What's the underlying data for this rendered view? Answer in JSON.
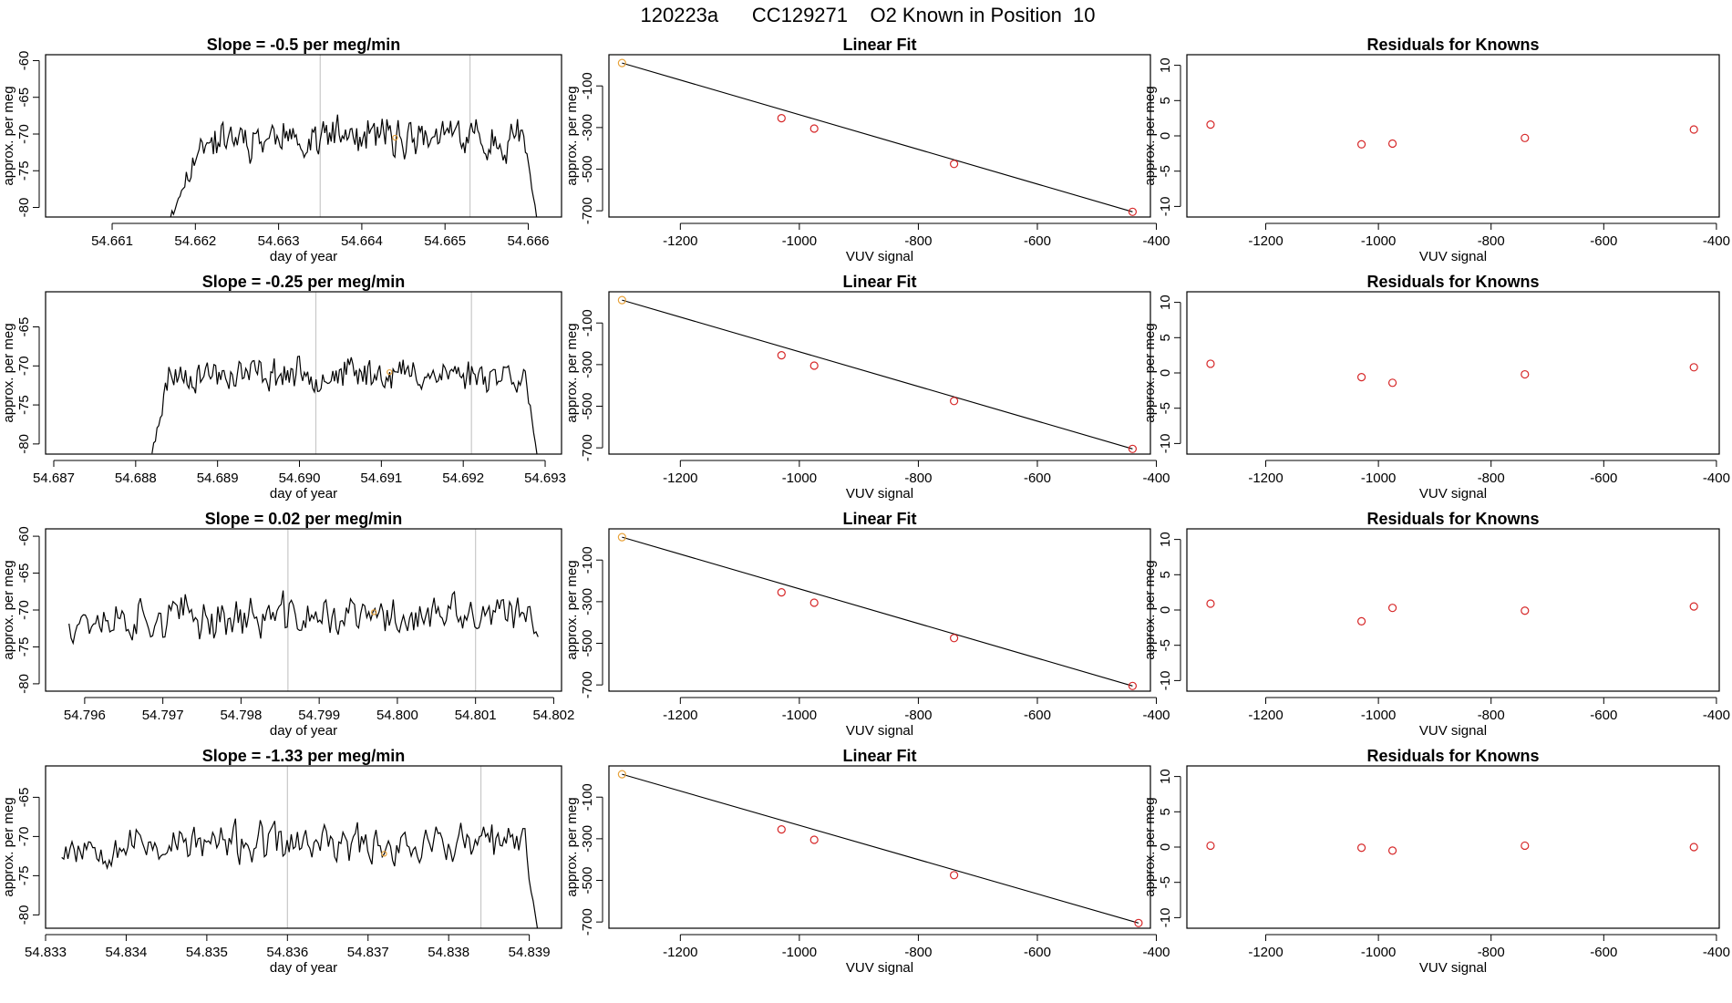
{
  "title": "120223a      CC129271    O2 Known in Position  10",
  "colors": {
    "line": "#000000",
    "point": "#d62728",
    "highlight": "#e8a33c",
    "vline": "#c8c8c8",
    "frame": "#000000"
  },
  "chart_data": [
    {
      "type": "line",
      "row": 0,
      "col": 0,
      "title": "Slope =  -0.5  per meg/min",
      "xlabel": "day of year",
      "ylabel": "approx. per meg",
      "xlim": [
        54.6602,
        54.6664
      ],
      "ylim": [
        -81.3,
        -59.2
      ],
      "xticks": [
        "54.661",
        "54.662",
        "54.663",
        "54.664",
        "54.665",
        "54.666"
      ],
      "xtick_values": [
        54.661,
        54.662,
        54.663,
        54.664,
        54.665,
        54.666
      ],
      "yticks": [
        "-80",
        "-75",
        "-70",
        "-65",
        "-60"
      ],
      "ytick_values": [
        -80,
        -75,
        -70,
        -65,
        -60
      ],
      "vlines": [
        54.6635,
        54.6653
      ],
      "highlight_point": {
        "x": 54.6644,
        "y": -70.5
      },
      "series": {
        "x_start": 54.6617,
        "x_end": 54.6661,
        "low": -81.3,
        "mean": -70.5,
        "spread": 3.2,
        "ramp_start": 54.6617,
        "ramp_end": 54.6621,
        "drop_start": 54.66595,
        "seed": 11
      }
    },
    {
      "type": "scatter_fit",
      "row": 0,
      "col": 1,
      "title": "Linear Fit",
      "xlabel": "VUV signal",
      "ylabel": "approx. per meg",
      "xlim": [
        -1320,
        -410
      ],
      "ylim": [
        -730,
        50
      ],
      "xticks": [
        "-1200",
        "-1000",
        "-800",
        "-600",
        "-400"
      ],
      "xtick_values": [
        -1200,
        -1000,
        -800,
        -600,
        -400
      ],
      "yticks": [
        "-100",
        "-300",
        "-500",
        "-700"
      ],
      "ytick_values": [
        -100,
        -300,
        -500,
        -700
      ],
      "x": [
        -1298,
        -1030,
        -975,
        -740,
        -440
      ],
      "y": [
        10,
        -255,
        -305,
        -475,
        -705
      ],
      "fit": {
        "x1": -1298,
        "y1": 10,
        "x2": -440,
        "y2": -705
      },
      "highlight_index": 0
    },
    {
      "type": "scatter",
      "row": 0,
      "col": 2,
      "title": "Residuals for Knowns",
      "xlabel": "VUV signal",
      "ylabel": "approx. per meg",
      "xlim": [
        -1340,
        -395
      ],
      "ylim": [
        -11.5,
        11.5
      ],
      "xticks": [
        "-1200",
        "-1000",
        "-800",
        "-600",
        "-400"
      ],
      "xtick_values": [
        -1200,
        -1000,
        -800,
        -600,
        -400
      ],
      "yticks": [
        "-10",
        "-5",
        "0",
        "5",
        "10"
      ],
      "ytick_values": [
        -10,
        -5,
        0,
        5,
        10
      ],
      "x": [
        -1298,
        -1030,
        -975,
        -740,
        -440
      ],
      "y": [
        1.6,
        -1.2,
        -1.1,
        -0.3,
        0.9
      ]
    },
    {
      "type": "line",
      "row": 1,
      "col": 0,
      "title": "Slope =  -0.25  per meg/min",
      "xlabel": "day of year",
      "ylabel": "approx. per meg",
      "xlim": [
        54.6869,
        54.6932
      ],
      "ylim": [
        -81.3,
        -60.5
      ],
      "xticks": [
        "54.687",
        "54.688",
        "54.689",
        "54.690",
        "54.691",
        "54.692",
        "54.693"
      ],
      "xtick_values": [
        54.687,
        54.688,
        54.689,
        54.69,
        54.691,
        54.692,
        54.693
      ],
      "yticks": [
        "-80",
        "-75",
        "-70",
        "-65"
      ],
      "ytick_values": [
        -80,
        -75,
        -70,
        -65
      ],
      "vlines": [
        54.6902,
        54.6921
      ],
      "highlight_point": {
        "x": 54.6911,
        "y": -70.8
      },
      "series": {
        "x_start": 54.6882,
        "x_end": 54.6929,
        "low": -81.3,
        "mean": -71.0,
        "spread": 2.5,
        "ramp_start": 54.6882,
        "ramp_end": 54.6884,
        "drop_start": 54.69275,
        "seed": 23
      }
    },
    {
      "type": "scatter_fit",
      "row": 1,
      "col": 1,
      "title": "Linear Fit",
      "xlabel": "VUV signal",
      "ylabel": "approx. per meg",
      "xlim": [
        -1320,
        -410
      ],
      "ylim": [
        -730,
        50
      ],
      "xticks": [
        "-1200",
        "-1000",
        "-800",
        "-600",
        "-400"
      ],
      "xtick_values": [
        -1200,
        -1000,
        -800,
        -600,
        -400
      ],
      "yticks": [
        "-100",
        "-300",
        "-500",
        "-700"
      ],
      "ytick_values": [
        -100,
        -300,
        -500,
        -700
      ],
      "x": [
        -1298,
        -1030,
        -975,
        -740,
        -440
      ],
      "y": [
        10,
        -255,
        -305,
        -475,
        -705
      ],
      "fit": {
        "x1": -1298,
        "y1": 10,
        "x2": -440,
        "y2": -705
      },
      "highlight_index": 0
    },
    {
      "type": "scatter",
      "row": 1,
      "col": 2,
      "title": "Residuals for Knowns",
      "xlabel": "VUV signal",
      "ylabel": "approx. per meg",
      "xlim": [
        -1340,
        -395
      ],
      "ylim": [
        -11.5,
        11.5
      ],
      "xticks": [
        "-1200",
        "-1000",
        "-800",
        "-600",
        "-400"
      ],
      "xtick_values": [
        -1200,
        -1000,
        -800,
        -600,
        -400
      ],
      "yticks": [
        "-10",
        "-5",
        "0",
        "5",
        "10"
      ],
      "ytick_values": [
        -10,
        -5,
        0,
        5,
        10
      ],
      "x": [
        -1298,
        -1030,
        -975,
        -740,
        -440
      ],
      "y": [
        1.3,
        -0.6,
        -1.4,
        -0.2,
        0.8
      ]
    },
    {
      "type": "line",
      "row": 2,
      "col": 0,
      "title": "Slope =  0.02  per meg/min",
      "xlabel": "day of year",
      "ylabel": "approx. per meg",
      "xlim": [
        54.7955,
        54.8021
      ],
      "ylim": [
        -81.0,
        -59.0
      ],
      "xticks": [
        "54.796",
        "54.797",
        "54.798",
        "54.799",
        "54.800",
        "54.801",
        "54.802"
      ],
      "xtick_values": [
        54.796,
        54.797,
        54.798,
        54.799,
        54.8,
        54.801,
        54.802
      ],
      "yticks": [
        "-80",
        "-75",
        "-70",
        "-65",
        "-60"
      ],
      "ytick_values": [
        -80,
        -75,
        -70,
        -65,
        -60
      ],
      "vlines": [
        54.7986,
        54.801
      ],
      "highlight_point": {
        "x": 54.7997,
        "y": -70.3
      },
      "series": {
        "x_start": 54.7958,
        "x_end": 54.8018,
        "low": -81.0,
        "mean": -71.0,
        "spread": 3.5,
        "ramp_start": 54.7958,
        "ramp_end": 54.7958,
        "drop_start": 54.803,
        "seed": 37
      }
    },
    {
      "type": "scatter_fit",
      "row": 2,
      "col": 1,
      "title": "Linear Fit",
      "xlabel": "VUV signal",
      "ylabel": "approx. per meg",
      "xlim": [
        -1320,
        -410
      ],
      "ylim": [
        -730,
        50
      ],
      "xticks": [
        "-1200",
        "-1000",
        "-800",
        "-600",
        "-400"
      ],
      "xtick_values": [
        -1200,
        -1000,
        -800,
        -600,
        -400
      ],
      "yticks": [
        "-100",
        "-300",
        "-500",
        "-700"
      ],
      "ytick_values": [
        -100,
        -300,
        -500,
        -700
      ],
      "x": [
        -1298,
        -1030,
        -975,
        -740,
        -440
      ],
      "y": [
        10,
        -255,
        -305,
        -475,
        -705
      ],
      "fit": {
        "x1": -1298,
        "y1": 10,
        "x2": -440,
        "y2": -705
      },
      "highlight_index": 0
    },
    {
      "type": "scatter",
      "row": 2,
      "col": 2,
      "title": "Residuals for Knowns",
      "xlabel": "VUV signal",
      "ylabel": "approx. per meg",
      "xlim": [
        -1340,
        -395
      ],
      "ylim": [
        -11.5,
        11.5
      ],
      "xticks": [
        "-1200",
        "-1000",
        "-800",
        "-600",
        "-400"
      ],
      "xtick_values": [
        -1200,
        -1000,
        -800,
        -600,
        -400
      ],
      "yticks": [
        "-10",
        "-5",
        "0",
        "5",
        "10"
      ],
      "ytick_values": [
        -10,
        -5,
        0,
        5,
        10
      ],
      "x": [
        -1298,
        -1030,
        -975,
        -740,
        -440
      ],
      "y": [
        0.9,
        -1.6,
        0.3,
        -0.1,
        0.5
      ]
    },
    {
      "type": "line",
      "row": 3,
      "col": 0,
      "title": "Slope =  -1.33  per meg/min",
      "xlabel": "day of year",
      "ylabel": "approx. per meg",
      "xlim": [
        54.833,
        54.8394
      ],
      "ylim": [
        -81.7,
        -61.0
      ],
      "xticks": [
        "54.833",
        "54.834",
        "54.835",
        "54.836",
        "54.837",
        "54.838",
        "54.839"
      ],
      "xtick_values": [
        54.833,
        54.834,
        54.835,
        54.836,
        54.837,
        54.838,
        54.839
      ],
      "yticks": [
        "-80",
        "-75",
        "-70",
        "-65"
      ],
      "ytick_values": [
        -80,
        -75,
        -70,
        -65
      ],
      "vlines": [
        54.836,
        54.8384
      ],
      "highlight_point": {
        "x": 54.8372,
        "y": -72.2
      },
      "series": {
        "x_start": 54.8332,
        "x_end": 54.8391,
        "low": -81.7,
        "mean": -71.0,
        "spread": 3.0,
        "ramp_start": 54.8332,
        "ramp_end": 54.8332,
        "drop_start": 54.83895,
        "seed": 53
      }
    },
    {
      "type": "scatter_fit",
      "row": 3,
      "col": 1,
      "title": "Linear Fit",
      "xlabel": "VUV signal",
      "ylabel": "approx. per meg",
      "xlim": [
        -1320,
        -410
      ],
      "ylim": [
        -730,
        50
      ],
      "xticks": [
        "-1200",
        "-1000",
        "-800",
        "-600",
        "-400"
      ],
      "xtick_values": [
        -1200,
        -1000,
        -800,
        -600,
        -400
      ],
      "yticks": [
        "-100",
        "-300",
        "-500",
        "-700"
      ],
      "ytick_values": [
        -100,
        -300,
        -500,
        -700
      ],
      "x": [
        -1298,
        -1030,
        -975,
        -740,
        -430
      ],
      "y": [
        10,
        -255,
        -305,
        -475,
        -705
      ],
      "fit": {
        "x1": -1298,
        "y1": 10,
        "x2": -430,
        "y2": -705
      },
      "highlight_index": 0
    },
    {
      "type": "scatter",
      "row": 3,
      "col": 2,
      "title": "Residuals for Knowns",
      "xlabel": "VUV signal",
      "ylabel": "approx. per meg",
      "xlim": [
        -1340,
        -395
      ],
      "ylim": [
        -11.5,
        11.5
      ],
      "xticks": [
        "-1200",
        "-1000",
        "-800",
        "-600",
        "-400"
      ],
      "xtick_values": [
        -1200,
        -1000,
        -800,
        -600,
        -400
      ],
      "yticks": [
        "-10",
        "-5",
        "0",
        "5",
        "10"
      ],
      "ytick_values": [
        -10,
        -5,
        0,
        5,
        10
      ],
      "x": [
        -1298,
        -1030,
        -975,
        -740,
        -440
      ],
      "y": [
        0.2,
        -0.1,
        -0.5,
        0.2,
        0.0
      ]
    }
  ]
}
